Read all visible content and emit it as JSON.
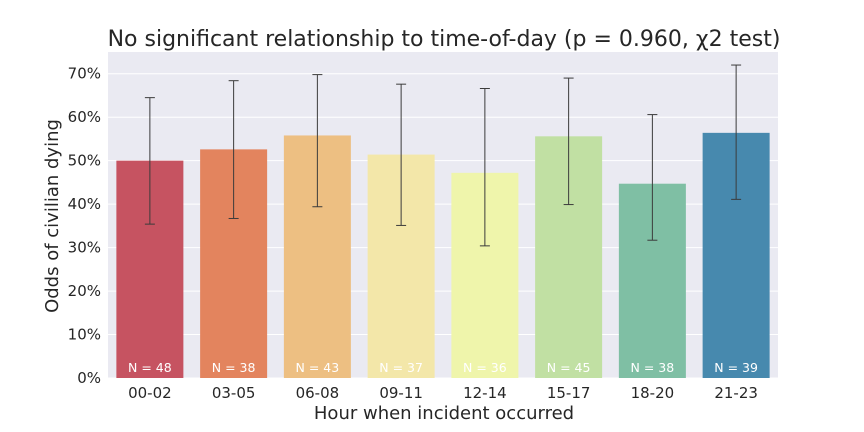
{
  "chart_data": {
    "type": "bar",
    "title": "No significant relationship to time-of-day (p = 0.960, χ2 test)",
    "xlabel": "Hour when incident occurred",
    "ylabel": "Odds of civilian dying",
    "ylim": [
      0,
      0.75
    ],
    "yticks": [
      0,
      0.1,
      0.2,
      0.3,
      0.4,
      0.5,
      0.6,
      0.7
    ],
    "ytick_labels": [
      "0%",
      "10%",
      "20%",
      "30%",
      "40%",
      "50%",
      "60%",
      "70%"
    ],
    "grid": true,
    "categories": [
      "00-02",
      "03-05",
      "06-08",
      "09-11",
      "12-14",
      "15-17",
      "18-20",
      "21-23"
    ],
    "values": [
      0.5,
      0.526,
      0.558,
      0.514,
      0.472,
      0.556,
      0.447,
      0.564
    ],
    "error_low": [
      0.354,
      0.367,
      0.394,
      0.351,
      0.304,
      0.399,
      0.317,
      0.411
    ],
    "error_high": [
      0.645,
      0.684,
      0.698,
      0.676,
      0.666,
      0.69,
      0.606,
      0.72
    ],
    "n_labels": [
      "N = 48",
      "N = 38",
      "N = 43",
      "N = 37",
      "N = 36",
      "N = 45",
      "N = 38",
      "N = 39"
    ],
    "colors": [
      "#c65361",
      "#e3845e",
      "#edbf82",
      "#f3e7a9",
      "#eff5ab",
      "#c1e0a3",
      "#7fbfa4",
      "#4789ae"
    ],
    "background_color": "#eaeaf2",
    "error_color": "#3b3b3b"
  }
}
